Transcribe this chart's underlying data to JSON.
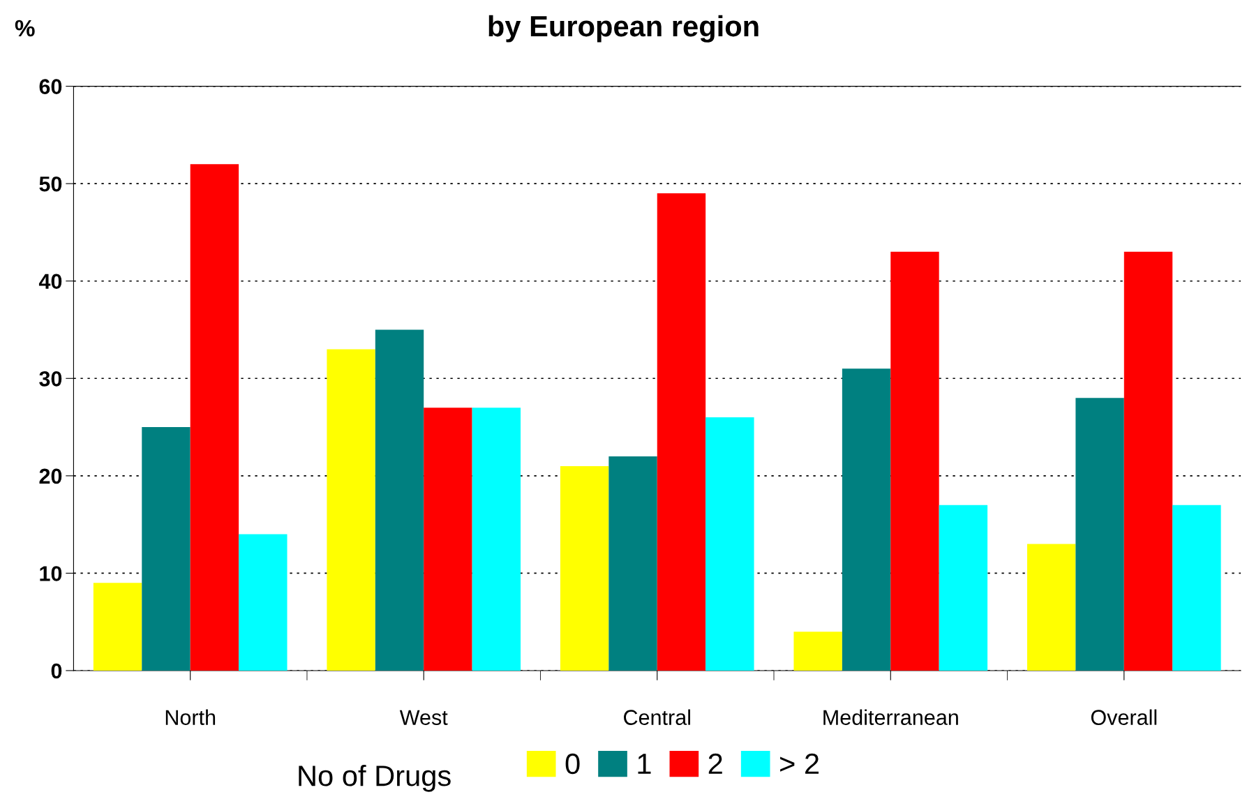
{
  "chart_data": {
    "type": "bar",
    "title": "by European region",
    "ylabel": "%",
    "legend_title": "No of Drugs",
    "categories": [
      "North",
      "West",
      "Central",
      "Mediterranean",
      "Overall"
    ],
    "series": [
      {
        "name": "0",
        "color": "#ffff00",
        "values": [
          9,
          33,
          21,
          4,
          13
        ]
      },
      {
        "name": "1",
        "color": "#008080",
        "values": [
          25,
          35,
          22,
          31,
          28
        ]
      },
      {
        "name": "2",
        "color": "#ff0000",
        "values": [
          52,
          27,
          49,
          43,
          43
        ]
      },
      {
        "name": "> 2",
        "color": "#00ffff",
        "values": [
          14,
          27,
          26,
          17,
          17
        ]
      }
    ],
    "ylim": [
      0,
      60
    ],
    "yticks": [
      0,
      10,
      20,
      30,
      40,
      50,
      60
    ],
    "grid": "y",
    "legend": "bottom"
  }
}
